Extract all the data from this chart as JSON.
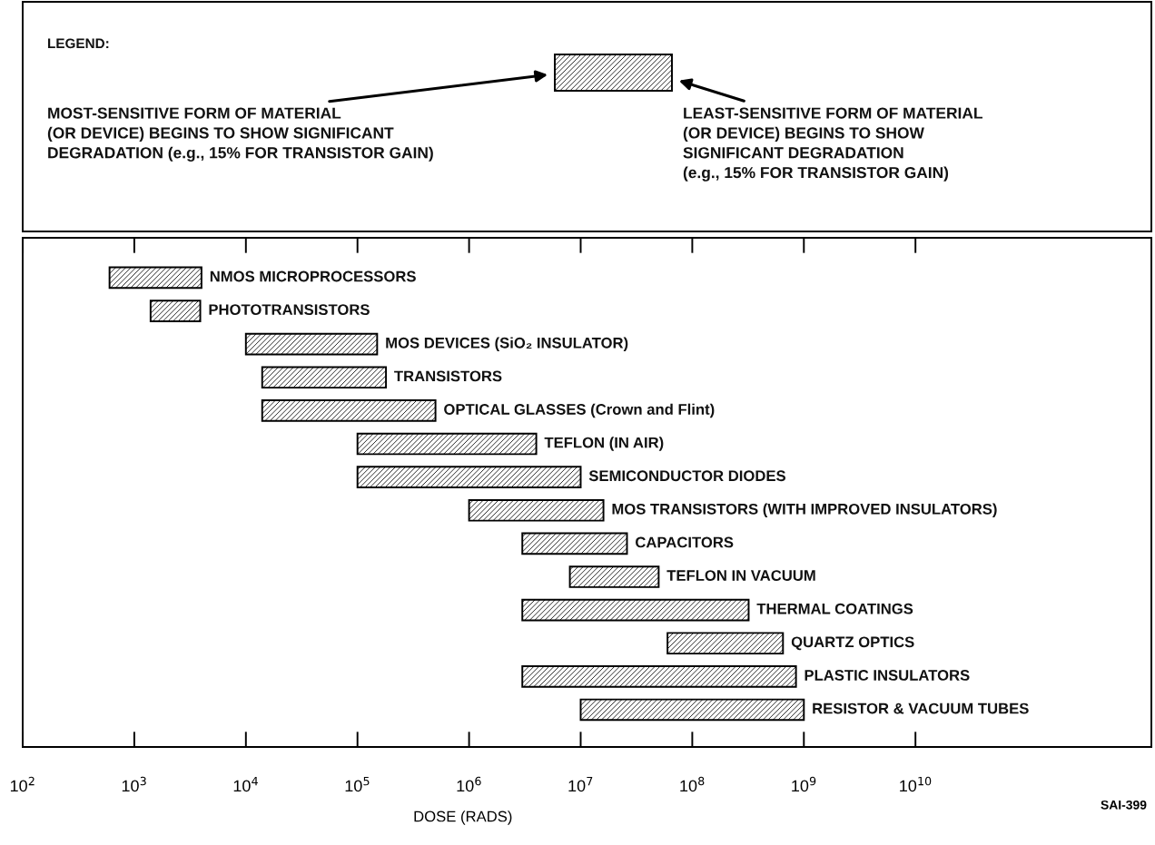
{
  "chart_data": {
    "type": "bar",
    "orientation": "horizontal",
    "log": "x",
    "xlabel": "DOSE (RADS)",
    "categories": [
      "NMOS MICROPROCESSORS",
      "PHOTOTRANSISTORS",
      "MOS DEVICES (SiO₂ INSULATOR)",
      "TRANSISTORS",
      "OPTICAL GLASSES (Crown and Flint)",
      "TEFLON (IN AIR)",
      "SEMICONDUCTOR DIODES",
      "MOS TRANSISTORS (WITH IMPROVED INSULATORS)",
      "CAPACITORS",
      "TEFLON IN VACUUM",
      "THERMAL COATINGS",
      "QUARTZ OPTICS",
      "PLASTIC INSULATORS",
      "RESISTOR & VACUUM TUBES"
    ],
    "base": [
      600,
      1400,
      10000,
      14000,
      14000,
      100000,
      100000,
      1000000,
      3000000,
      8000000,
      3000000,
      60000000,
      3000000,
      10000000
    ],
    "values": [
      3400,
      2500,
      140000,
      166000,
      486000,
      3900000,
      9900000,
      15000000,
      23000000,
      42000000,
      317000000,
      590000000,
      847000000,
      990000000
    ],
    "color": "#000000",
    "xlim": [
      100,
      1300000000000
    ],
    "xticks": [
      {
        "value": 100,
        "label": "10$^{2}$"
      },
      {
        "value": 1000,
        "label": "10$^{3}$"
      },
      {
        "value": 10000,
        "label": "10$^{4}$"
      },
      {
        "value": 100000,
        "label": "10$^{5}$"
      },
      {
        "value": 1000000,
        "label": "10$^{6}$"
      },
      {
        "value": 10000000,
        "label": "10$^{7}$"
      },
      {
        "value": 100000000,
        "label": "10$^{8}$"
      },
      {
        "value": 1000000000,
        "label": "10$^{9}$"
      },
      {
        "value": 10000000000,
        "label": "10$^{10}$"
      }
    ],
    "tick_labels": "x",
    "grid": false,
    "legend": false,
    "annotations": [
      "LEGEND:",
      "MOST-SENSITIVE FORM OF MATERIAL\n(OR DEVICE) BEGINS TO SHOW SIGNIFICANT\nDEGRADATION (e.g., 15% FOR TRANSISTOR GAIN)",
      "LEAST-SENSITIVE FORM OF MATERIAL\n(OR DEVICE) BEGINS TO SHOW\nSIGNIFICANT DEGRADATION\n(e.g., 15% FOR TRANSISTOR GAIN)",
      "SAI-399"
    ]
  }
}
